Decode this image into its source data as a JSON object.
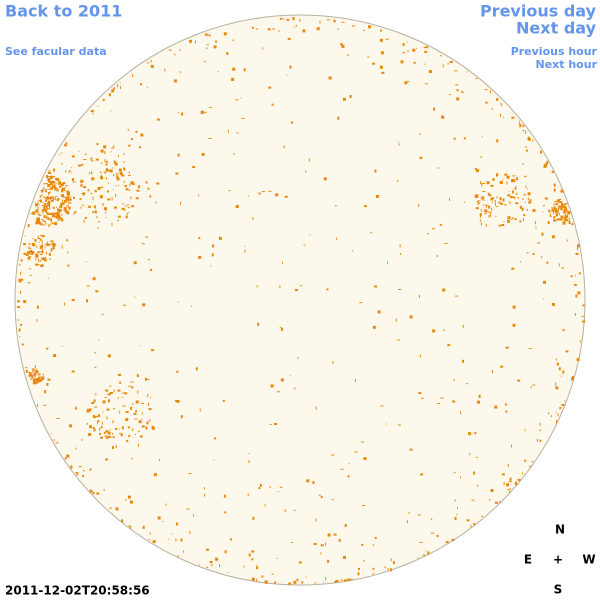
{
  "navigation": {
    "back_year": "Back to 2011",
    "facular_link": "See facular data",
    "previous_day": "Previous day",
    "next_day": "Next day",
    "previous_hour": "Previous hour",
    "next_hour": "Next hour"
  },
  "timestamp": "2011-12-02T20:58:56",
  "compass": {
    "north": "N",
    "east": "E",
    "center": "+",
    "west": "W",
    "south": "S"
  }
}
